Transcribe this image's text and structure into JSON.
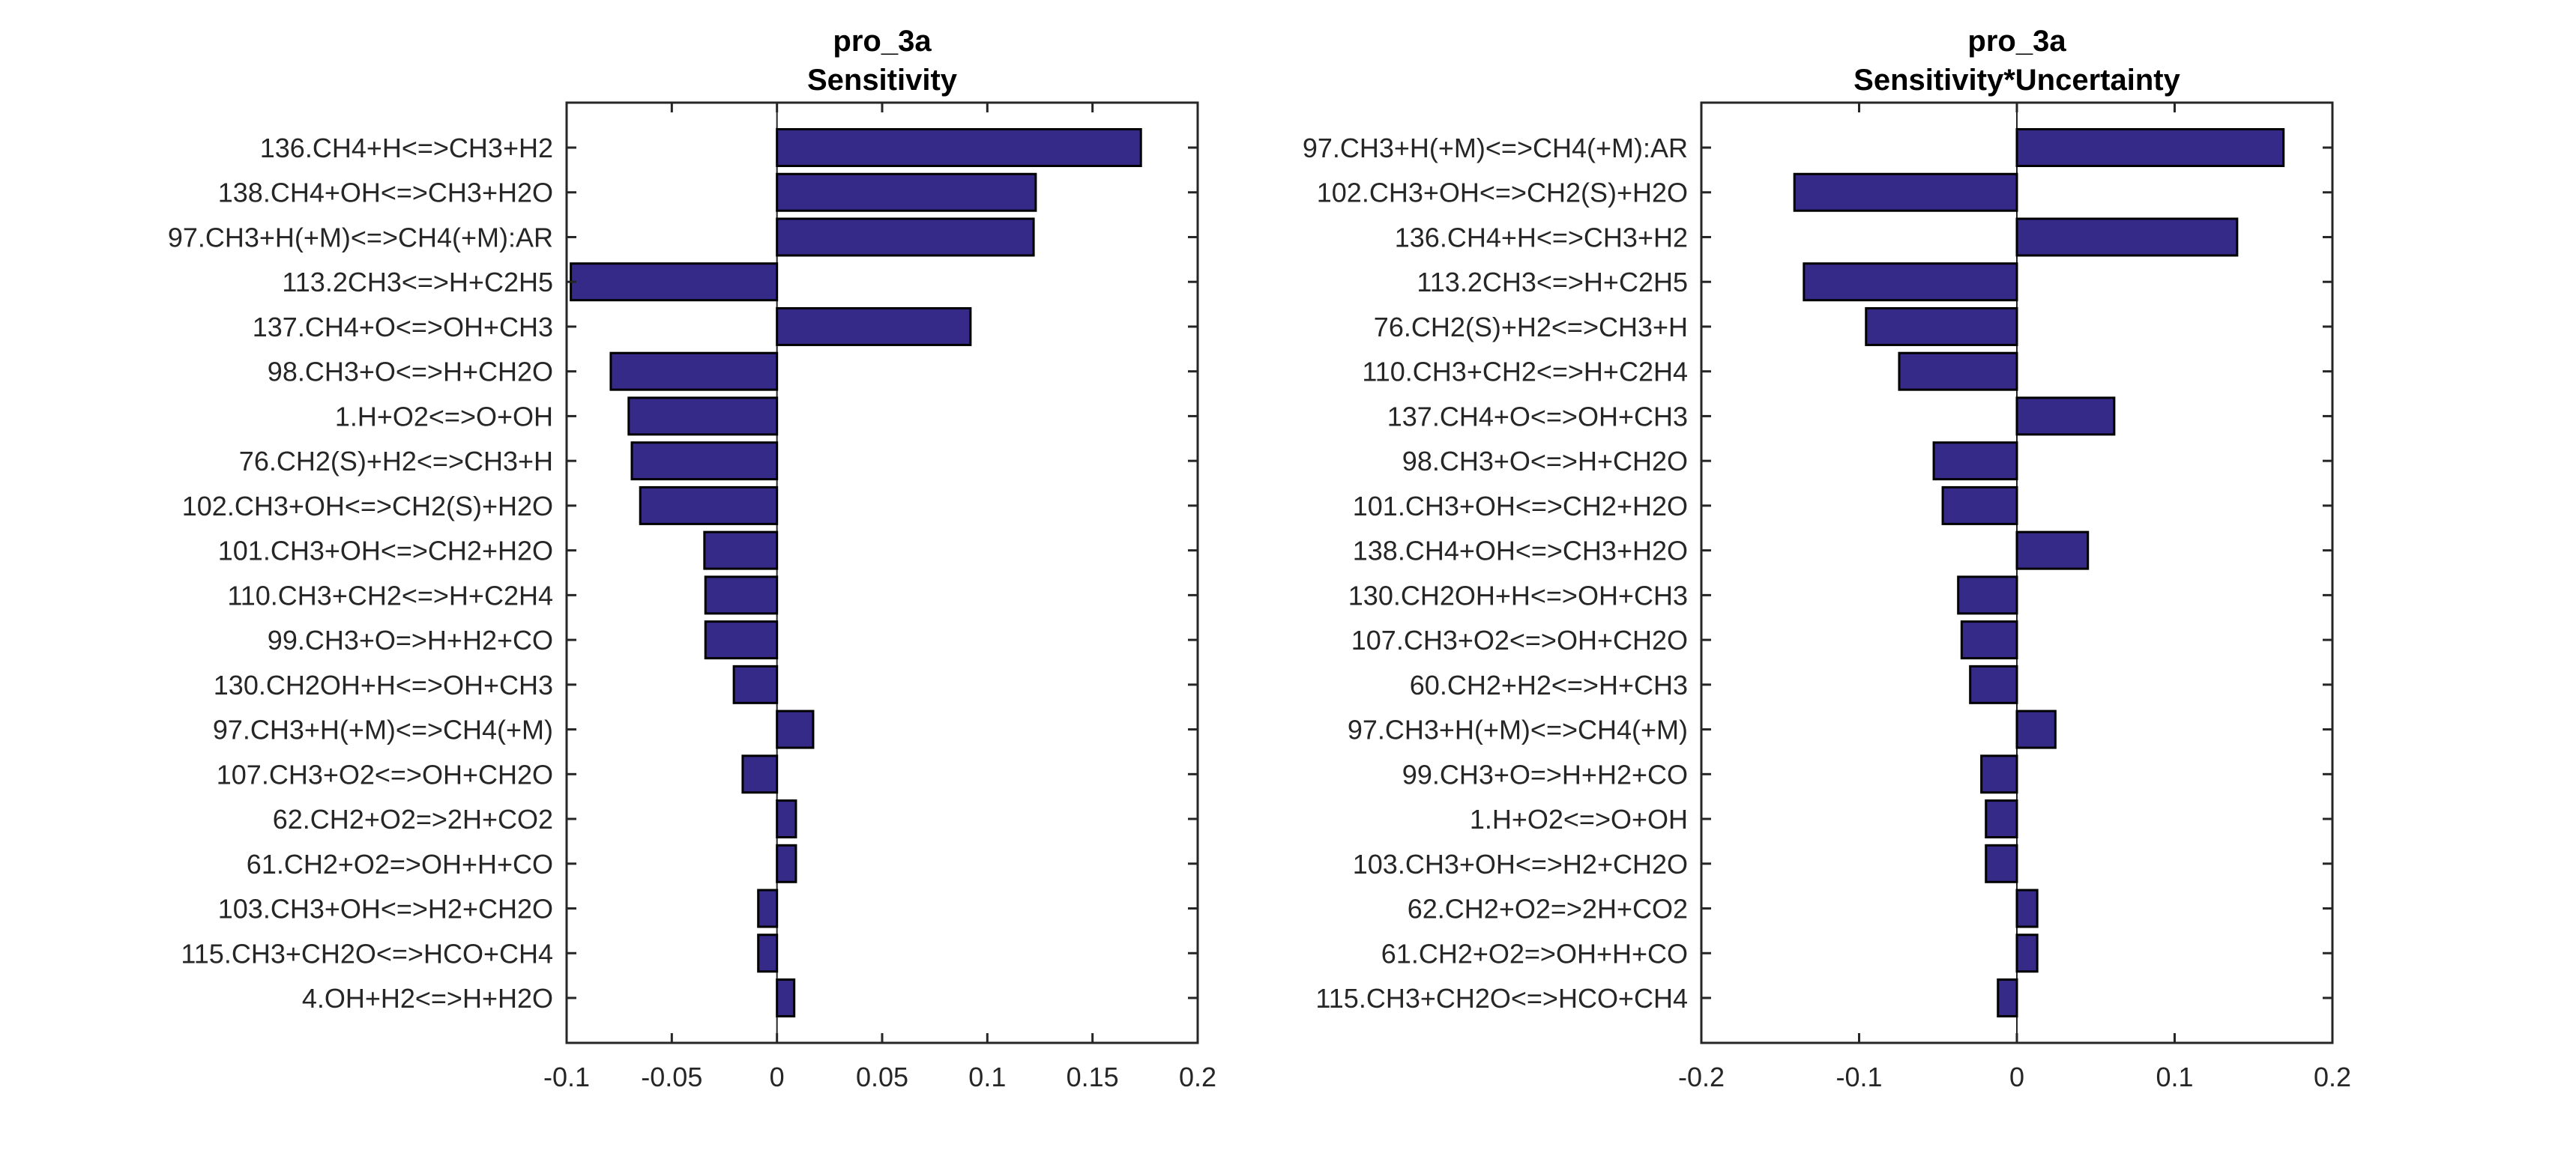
{
  "colors": {
    "bar_fill": "#352a87",
    "bar_edge": "#000000",
    "axis": "#262626",
    "background": "#ffffff"
  },
  "chart_data": [
    {
      "type": "bar",
      "orientation": "horizontal",
      "title": "pro_3a",
      "subtitle": "Sensitivity",
      "xlabel": "",
      "ylabel": "",
      "xlim": [
        -0.1,
        0.2
      ],
      "xticks": [
        -0.1,
        -0.05,
        0,
        0.05,
        0.1,
        0.15,
        0.2
      ],
      "xtick_labels": [
        "-0.1",
        "-0.05",
        "0",
        "0.05",
        "0.1",
        "0.15",
        "0.2"
      ],
      "grid": false,
      "legend": "none",
      "categories": [
        "136.CH4+H<=>CH3+H2",
        "138.CH4+OH<=>CH3+H2O",
        "97.CH3+H(+M)<=>CH4(+M):AR",
        "113.2CH3<=>H+C2H5",
        "137.CH4+O<=>OH+CH3",
        "98.CH3+O<=>H+CH2O",
        "1.H+O2<=>O+OH",
        "76.CH2(S)+H2<=>CH3+H",
        "102.CH3+OH<=>CH2(S)+H2O",
        "101.CH3+OH<=>CH2+H2O",
        "110.CH3+CH2<=>H+C2H4",
        "99.CH3+O=>H+H2+CO",
        "130.CH2OH+H<=>OH+CH3",
        "97.CH3+H(+M)<=>CH4(+M)",
        "107.CH3+O2<=>OH+CH2O",
        "62.CH2+O2=>2H+CO2",
        "61.CH2+O2=>OH+H+CO",
        "103.CH3+OH<=>H2+CH2O",
        "115.CH3+CH2O<=>HCO+CH4",
        "4.OH+H2<=>H+H2O"
      ],
      "values": [
        0.173,
        0.123,
        0.122,
        -0.098,
        0.092,
        -0.079,
        -0.0705,
        -0.069,
        -0.065,
        -0.0345,
        -0.034,
        -0.034,
        -0.0205,
        0.0172,
        -0.0163,
        0.009,
        0.009,
        -0.0089,
        -0.0089,
        0.0082
      ]
    },
    {
      "type": "bar",
      "orientation": "horizontal",
      "title": "pro_3a",
      "subtitle": "Sensitivity*Uncertainty",
      "xlabel": "",
      "ylabel": "",
      "xlim": [
        -0.2,
        0.2
      ],
      "xticks": [
        -0.2,
        -0.1,
        0,
        0.1,
        0.2
      ],
      "xtick_labels": [
        "-0.2",
        "-0.1",
        "0",
        "0.1",
        "0.2"
      ],
      "grid": false,
      "legend": "none",
      "categories": [
        "97.CH3+H(+M)<=>CH4(+M):AR",
        "102.CH3+OH<=>CH2(S)+H2O",
        "136.CH4+H<=>CH3+H2",
        "113.2CH3<=>H+C2H5",
        "76.CH2(S)+H2<=>CH3+H",
        "110.CH3+CH2<=>H+C2H4",
        "137.CH4+O<=>OH+CH3",
        "98.CH3+O<=>H+CH2O",
        "101.CH3+OH<=>CH2+H2O",
        "138.CH4+OH<=>CH3+H2O",
        "130.CH2OH+H<=>OH+CH3",
        "107.CH3+O2<=>OH+CH2O",
        "60.CH2+H2<=>H+CH3",
        "97.CH3+H(+M)<=>CH4(+M)",
        "99.CH3+O=>H+H2+CO",
        "1.H+O2<=>O+OH",
        "103.CH3+OH<=>H2+CH2O",
        "62.CH2+O2=>2H+CO2",
        "61.CH2+O2=>OH+H+CO",
        "115.CH3+CH2O<=>HCO+CH4"
      ],
      "values": [
        0.169,
        -0.141,
        0.1396,
        -0.135,
        -0.0956,
        -0.0746,
        0.0617,
        -0.0527,
        -0.047,
        0.045,
        -0.0372,
        -0.035,
        -0.0296,
        0.0244,
        -0.0225,
        -0.0196,
        -0.0196,
        0.0129,
        0.0129,
        -0.012
      ]
    }
  ]
}
